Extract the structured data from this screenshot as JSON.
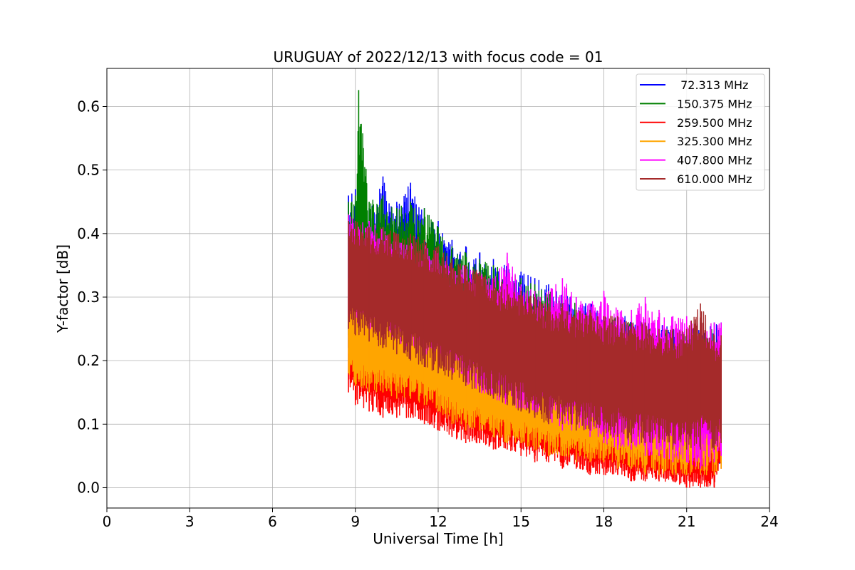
{
  "chart_data": {
    "type": "line",
    "title": "URUGUAY of 2022/12/13 with focus code = 01",
    "xlabel": "Universal Time [h]",
    "ylabel": "Y-factor [dB]",
    "xlim": [
      0,
      24
    ],
    "ylim": [
      -0.032,
      0.66
    ],
    "xticks": [
      0,
      3,
      6,
      9,
      12,
      15,
      18,
      21,
      24
    ],
    "xtick_labels": [
      "0",
      "3",
      "6",
      "9",
      "12",
      "15",
      "18",
      "21",
      "24"
    ],
    "yticks": [
      0.0,
      0.1,
      0.2,
      0.3,
      0.4,
      0.5,
      0.6
    ],
    "ytick_labels": [
      "0.0",
      "0.1",
      "0.2",
      "0.3",
      "0.4",
      "0.5",
      "0.6"
    ],
    "grid": true,
    "legend_position": "top-right",
    "series": [
      {
        "name": " 72.313 MHz",
        "color": "#0000ff",
        "x": [
          8.75,
          9.0,
          9.5,
          10.0,
          10.5,
          11.0,
          11.5,
          12.0,
          12.5,
          13.0,
          13.5,
          14.0,
          14.5,
          15.0,
          15.5,
          16.0,
          16.5,
          17.0,
          17.5,
          18.0,
          18.5,
          19.0,
          19.5,
          20.0,
          20.5,
          21.0,
          21.5,
          22.0,
          22.25
        ],
        "upper": [
          0.46,
          0.47,
          0.44,
          0.49,
          0.45,
          0.48,
          0.44,
          0.42,
          0.39,
          0.38,
          0.37,
          0.36,
          0.35,
          0.34,
          0.33,
          0.32,
          0.31,
          0.3,
          0.29,
          0.28,
          0.27,
          0.27,
          0.26,
          0.26,
          0.25,
          0.25,
          0.25,
          0.26,
          0.26
        ],
        "lower": [
          0.22,
          0.21,
          0.2,
          0.19,
          0.18,
          0.17,
          0.16,
          0.15,
          0.14,
          0.13,
          0.12,
          0.11,
          0.1,
          0.1,
          0.09,
          0.08,
          0.07,
          0.07,
          0.06,
          0.05,
          0.05,
          0.04,
          0.04,
          0.04,
          0.03,
          0.03,
          0.02,
          0.03,
          0.04
        ]
      },
      {
        "name": "150.375 MHz",
        "color": "#008000",
        "x": [
          8.75,
          9.0,
          9.12,
          9.5,
          10.0,
          10.5,
          11.0,
          11.5,
          12.0,
          12.5,
          13.0,
          13.5,
          14.0,
          14.5,
          15.0,
          15.5,
          16.0,
          16.5,
          17.0,
          17.5,
          18.0,
          18.5,
          19.0,
          19.5,
          20.0,
          20.5,
          21.0,
          21.5,
          22.0,
          22.25
        ],
        "upper": [
          0.45,
          0.46,
          0.626,
          0.45,
          0.46,
          0.44,
          0.45,
          0.44,
          0.41,
          0.38,
          0.37,
          0.36,
          0.35,
          0.34,
          0.33,
          0.32,
          0.31,
          0.3,
          0.29,
          0.28,
          0.27,
          0.27,
          0.26,
          0.26,
          0.25,
          0.25,
          0.25,
          0.25,
          0.25,
          0.25
        ],
        "lower": [
          0.24,
          0.23,
          0.22,
          0.21,
          0.2,
          0.19,
          0.18,
          0.17,
          0.16,
          0.15,
          0.14,
          0.13,
          0.12,
          0.11,
          0.1,
          0.1,
          0.09,
          0.08,
          0.07,
          0.07,
          0.06,
          0.05,
          0.05,
          0.04,
          0.04,
          0.03,
          0.03,
          0.03,
          0.04,
          0.05
        ]
      },
      {
        "name": "259.500 MHz",
        "color": "#ff0000",
        "x": [
          8.75,
          9.0,
          9.5,
          10.0,
          10.5,
          11.0,
          11.5,
          12.0,
          12.5,
          13.0,
          13.5,
          14.0,
          14.5,
          15.0,
          15.5,
          16.0,
          16.5,
          17.0,
          17.5,
          18.0,
          18.5,
          19.0,
          19.5,
          20.0,
          20.5,
          21.0,
          21.5,
          22.0,
          22.25
        ],
        "upper": [
          0.3,
          0.29,
          0.28,
          0.27,
          0.26,
          0.25,
          0.24,
          0.23,
          0.22,
          0.21,
          0.2,
          0.19,
          0.18,
          0.17,
          0.16,
          0.15,
          0.14,
          0.14,
          0.13,
          0.12,
          0.12,
          0.11,
          0.11,
          0.1,
          0.1,
          0.1,
          0.1,
          0.1,
          0.1
        ],
        "lower": [
          0.15,
          0.13,
          0.12,
          0.11,
          0.11,
          0.11,
          0.1,
          0.09,
          0.08,
          0.07,
          0.07,
          0.06,
          0.06,
          0.05,
          0.04,
          0.04,
          0.03,
          0.03,
          0.02,
          0.02,
          0.02,
          0.01,
          0.01,
          0.01,
          0.01,
          0.0,
          0.0,
          0.0,
          0.03
        ]
      },
      {
        "name": "325.300 MHz",
        "color": "#ffa500",
        "x": [
          8.75,
          9.0,
          9.5,
          10.0,
          10.5,
          11.0,
          11.5,
          12.0,
          12.5,
          13.0,
          13.5,
          14.0,
          14.5,
          15.0,
          15.5,
          16.0,
          16.5,
          17.0,
          17.5,
          18.0,
          18.5,
          19.0,
          19.5,
          20.0,
          20.5,
          21.0,
          21.5,
          22.0,
          22.25
        ],
        "upper": [
          0.33,
          0.32,
          0.31,
          0.3,
          0.3,
          0.29,
          0.28,
          0.27,
          0.26,
          0.25,
          0.24,
          0.23,
          0.23,
          0.22,
          0.21,
          0.21,
          0.2,
          0.2,
          0.2,
          0.2,
          0.2,
          0.2,
          0.2,
          0.2,
          0.2,
          0.21,
          0.21,
          0.21,
          0.21
        ],
        "lower": [
          0.18,
          0.16,
          0.15,
          0.15,
          0.14,
          0.14,
          0.13,
          0.12,
          0.1,
          0.09,
          0.09,
          0.08,
          0.07,
          0.07,
          0.06,
          0.05,
          0.05,
          0.04,
          0.04,
          0.04,
          0.03,
          0.03,
          0.02,
          0.02,
          0.02,
          0.02,
          0.02,
          0.02,
          0.03
        ]
      },
      {
        "name": "407.800 MHz",
        "color": "#ff00ff",
        "x": [
          8.75,
          9.0,
          9.5,
          10.0,
          10.5,
          11.0,
          11.5,
          12.0,
          12.5,
          13.0,
          13.5,
          14.0,
          14.5,
          15.0,
          15.5,
          16.0,
          16.5,
          17.0,
          17.5,
          18.0,
          18.5,
          19.0,
          19.5,
          20.0,
          20.5,
          21.0,
          21.5,
          22.0,
          22.25
        ],
        "upper": [
          0.43,
          0.42,
          0.42,
          0.41,
          0.4,
          0.39,
          0.39,
          0.37,
          0.35,
          0.35,
          0.34,
          0.33,
          0.37,
          0.32,
          0.31,
          0.31,
          0.33,
          0.3,
          0.29,
          0.31,
          0.28,
          0.28,
          0.3,
          0.28,
          0.27,
          0.27,
          0.26,
          0.26,
          0.26
        ],
        "lower": [
          0.27,
          0.26,
          0.25,
          0.24,
          0.23,
          0.22,
          0.21,
          0.2,
          0.18,
          0.16,
          0.15,
          0.14,
          0.13,
          0.12,
          0.11,
          0.1,
          0.09,
          0.09,
          0.08,
          0.07,
          0.06,
          0.06,
          0.05,
          0.05,
          0.04,
          0.04,
          0.03,
          0.04,
          0.05
        ]
      },
      {
        "name": "610.000 MHz",
        "color": "#a52a2a",
        "x": [
          8.75,
          9.0,
          9.5,
          10.0,
          10.5,
          11.0,
          11.5,
          12.0,
          12.5,
          13.0,
          13.5,
          14.0,
          14.5,
          15.0,
          15.5,
          16.0,
          16.5,
          17.0,
          17.5,
          18.0,
          18.5,
          19.0,
          19.5,
          20.0,
          20.5,
          21.0,
          21.5,
          22.0,
          22.25
        ],
        "upper": [
          0.42,
          0.42,
          0.41,
          0.41,
          0.4,
          0.4,
          0.39,
          0.38,
          0.36,
          0.35,
          0.34,
          0.33,
          0.32,
          0.31,
          0.3,
          0.29,
          0.29,
          0.28,
          0.28,
          0.27,
          0.27,
          0.26,
          0.26,
          0.25,
          0.25,
          0.25,
          0.29,
          0.24,
          0.24
        ],
        "lower": [
          0.25,
          0.24,
          0.23,
          0.22,
          0.21,
          0.2,
          0.19,
          0.18,
          0.17,
          0.16,
          0.15,
          0.14,
          0.13,
          0.12,
          0.11,
          0.1,
          0.1,
          0.09,
          0.09,
          0.08,
          0.08,
          0.07,
          0.07,
          0.07,
          0.06,
          0.06,
          0.06,
          0.06,
          0.07
        ]
      }
    ]
  }
}
